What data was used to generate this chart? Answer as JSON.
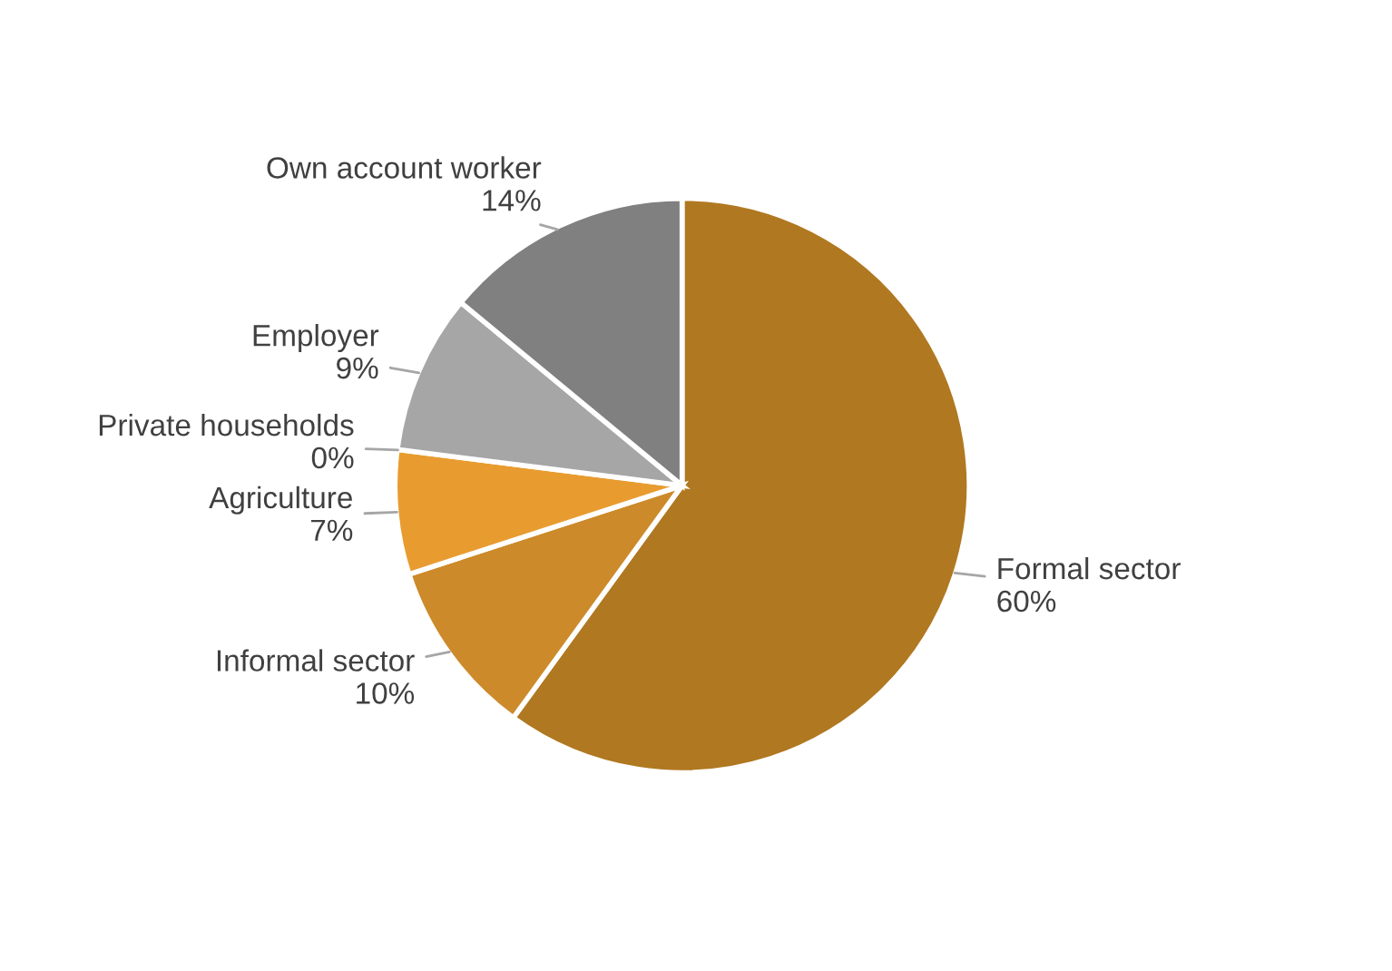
{
  "chart_data": {
    "type": "pie",
    "categories": [
      "Formal sector",
      "Informal sector",
      "Agriculture",
      "Private households",
      "Employer",
      "Own account worker"
    ],
    "values": [
      60,
      10,
      7,
      0,
      9,
      14
    ],
    "colors": [
      "#b07820",
      "#cc8a2a",
      "#e89c30",
      "#c0c0c0",
      "#a6a6a6",
      "#808080"
    ],
    "value_labels": [
      "60%",
      "10%",
      "7%",
      "0%",
      "9%",
      "14%"
    ]
  }
}
